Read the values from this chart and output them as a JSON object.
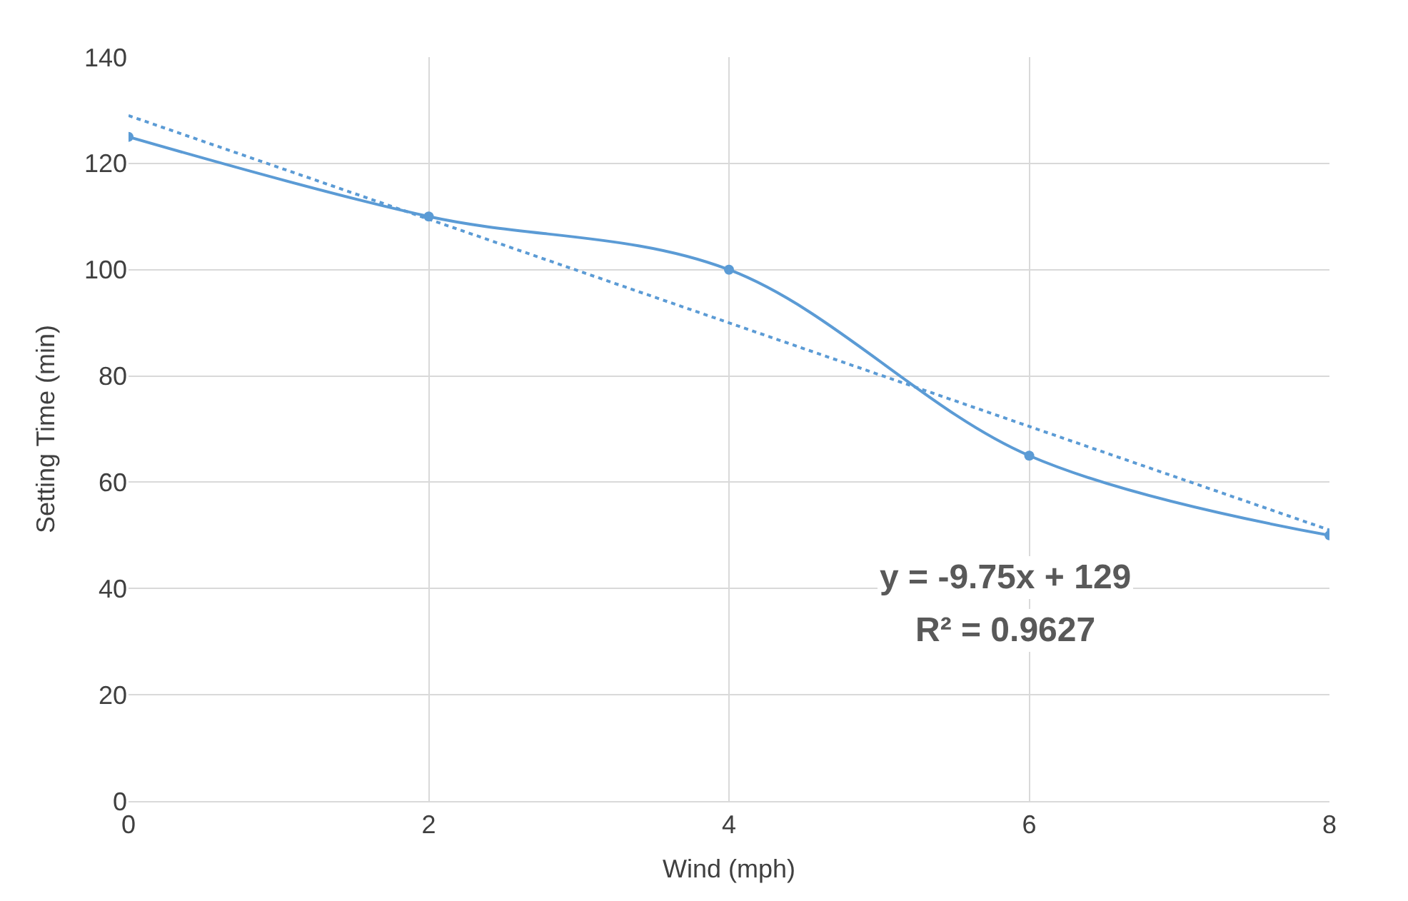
{
  "chart_data": {
    "type": "line",
    "xlabel": "Wind (mph)",
    "ylabel": "Setting Time (min)",
    "x": [
      0,
      2,
      4,
      6,
      8
    ],
    "series": [
      {
        "color": "#5b9bd5",
        "values": [
          125,
          110,
          100,
          65,
          50
        ],
        "marker": "circle",
        "line_style": "solid"
      },
      {
        "type": "line",
        "color": "#5b9bd5",
        "x": [
          0,
          8
        ],
        "values": [
          129,
          51
        ],
        "marker": "none",
        "line_style": "dotted"
      }
    ],
    "xlim": [
      0,
      8
    ],
    "xticks": [
      0,
      2,
      4,
      6,
      8
    ],
    "ylim": [
      0,
      140
    ],
    "yticks": [
      0,
      20,
      40,
      60,
      80,
      100,
      120,
      140
    ],
    "grid": true,
    "annotations": [
      "y = -9.75x + 129",
      "R² = 0.9627"
    ]
  }
}
